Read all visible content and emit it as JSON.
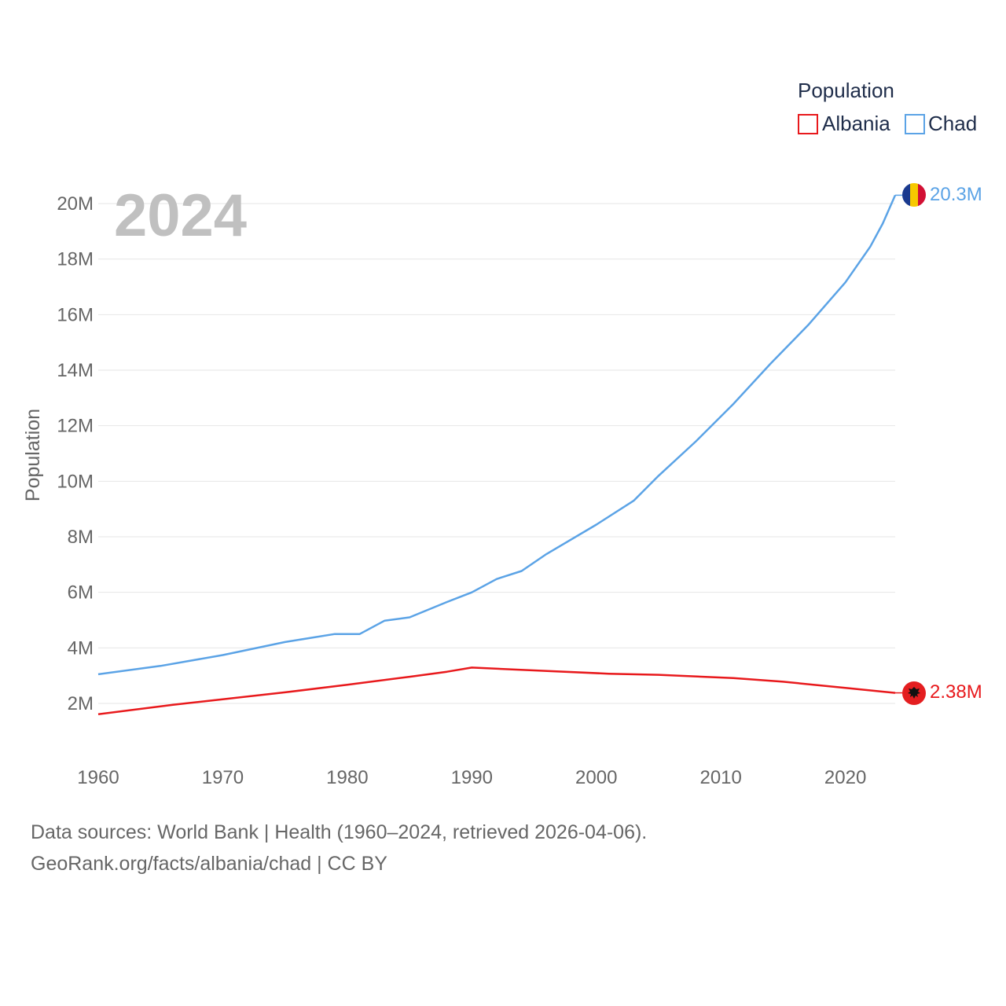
{
  "chart_data": {
    "type": "line",
    "title": "",
    "year_label": "2024",
    "ylabel": "Population",
    "xlabel": "",
    "xlim": [
      1960,
      2024
    ],
    "ylim": [
      700000,
      20700000
    ],
    "y_ticks": [
      2000000,
      4000000,
      6000000,
      8000000,
      10000000,
      12000000,
      14000000,
      16000000,
      18000000,
      20000000
    ],
    "y_tick_labels": [
      "2M",
      "4M",
      "6M",
      "8M",
      "10M",
      "12M",
      "14M",
      "16M",
      "18M",
      "20M"
    ],
    "x_ticks": [
      1960,
      1970,
      1980,
      1990,
      2000,
      2010,
      2020
    ],
    "x_tick_labels": [
      "1960",
      "1970",
      "1980",
      "1990",
      "2000",
      "2010",
      "2020"
    ],
    "grid": true,
    "legend": {
      "title": "Population",
      "position": "top-right"
    },
    "series": [
      {
        "name": "Albania",
        "color": "#e8191c",
        "end_label": "2.38M",
        "flag": "albania-flag",
        "x": [
          1960,
          1966,
          1970,
          1975,
          1980,
          1985,
          1988,
          1990,
          1995,
          2001,
          2005,
          2011,
          2015,
          2020,
          2024
        ],
        "values": [
          1610000,
          1950000,
          2150000,
          2400000,
          2670000,
          2960000,
          3140000,
          3290000,
          3190000,
          3070000,
          3030000,
          2910000,
          2780000,
          2560000,
          2380000
        ]
      },
      {
        "name": "Chad",
        "color": "#5ba3e6",
        "end_label": "20.3M",
        "flag": "chad-flag",
        "x": [
          1960,
          1965,
          1970,
          1975,
          1979,
          1981,
          1983,
          1985,
          1988,
          1990,
          1992,
          1994,
          1996,
          2000,
          2003,
          2005,
          2008,
          2011,
          2014,
          2017,
          2020,
          2022,
          2023,
          2024
        ],
        "values": [
          3050000,
          3350000,
          3740000,
          4210000,
          4500000,
          4500000,
          4980000,
          5100000,
          5650000,
          6000000,
          6480000,
          6770000,
          7380000,
          8440000,
          9300000,
          10200000,
          11440000,
          12780000,
          14240000,
          15620000,
          17160000,
          18450000,
          19280000,
          20300000
        ]
      }
    ]
  },
  "footer": {
    "line1": "Data sources: World Bank | Health (1960–2024, retrieved 2026-04-06).",
    "line2": "GeoRank.org/facts/albania/chad | CC BY"
  }
}
